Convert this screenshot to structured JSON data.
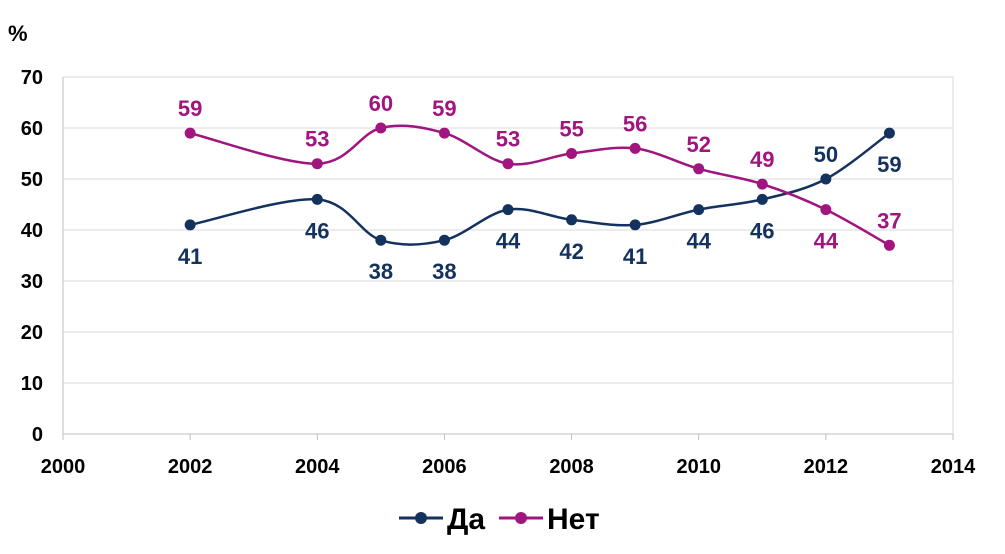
{
  "chart_data": {
    "type": "line",
    "smooth": true,
    "unit_label": "%",
    "title": "",
    "xlabel": "",
    "ylabel": "",
    "xlim": [
      2000,
      2014
    ],
    "ylim": [
      0,
      70
    ],
    "x_ticks": [
      2000,
      2002,
      2004,
      2006,
      2008,
      2010,
      2012,
      2014
    ],
    "y_ticks": [
      0,
      10,
      20,
      30,
      40,
      50,
      60,
      70
    ],
    "grid": "horizontal",
    "legend_position": "bottom-center",
    "series": [
      {
        "name": "Да",
        "color": "#14325e",
        "label_position": [
          "below",
          "below",
          "below",
          "below",
          "below",
          "below",
          "below",
          "below",
          "below",
          "above",
          "below"
        ],
        "points": [
          {
            "x": 2002,
            "y": 41
          },
          {
            "x": 2004,
            "y": 46
          },
          {
            "x": 2005,
            "y": 38
          },
          {
            "x": 2006,
            "y": 38
          },
          {
            "x": 2007,
            "y": 44
          },
          {
            "x": 2008,
            "y": 42
          },
          {
            "x": 2009,
            "y": 41
          },
          {
            "x": 2010,
            "y": 44
          },
          {
            "x": 2011,
            "y": 46
          },
          {
            "x": 2012,
            "y": 50
          },
          {
            "x": 2013,
            "y": 59
          }
        ]
      },
      {
        "name": "Нет",
        "color": "#a0157e",
        "label_position": [
          "above",
          "above",
          "above",
          "above",
          "above",
          "above",
          "above",
          "above",
          "above",
          "below",
          "above"
        ],
        "points": [
          {
            "x": 2002,
            "y": 59
          },
          {
            "x": 2004,
            "y": 53
          },
          {
            "x": 2005,
            "y": 60
          },
          {
            "x": 2006,
            "y": 59
          },
          {
            "x": 2007,
            "y": 53
          },
          {
            "x": 2008,
            "y": 55
          },
          {
            "x": 2009,
            "y": 56
          },
          {
            "x": 2010,
            "y": 52
          },
          {
            "x": 2011,
            "y": 49
          },
          {
            "x": 2012,
            "y": 44
          },
          {
            "x": 2013,
            "y": 37
          }
        ]
      }
    ]
  },
  "colors": {
    "grid": "#d9d9d9",
    "axis": "#bfbfbf",
    "text": "#000000"
  }
}
